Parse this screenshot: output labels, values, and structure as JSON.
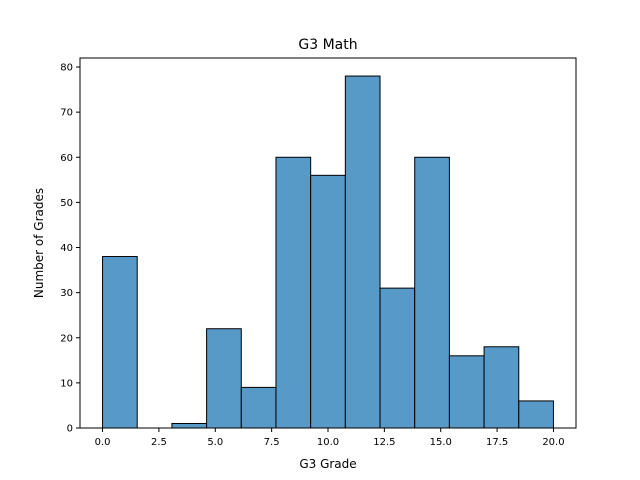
{
  "chart_data": {
    "type": "bar",
    "title": "G3 Math",
    "xlabel": "G3 Grade",
    "ylabel": "Number of Grades",
    "bins": [
      {
        "x0": 0.0,
        "x1": 1.538,
        "value": 38
      },
      {
        "x0": 1.538,
        "x1": 3.077,
        "value": 0
      },
      {
        "x0": 3.077,
        "x1": 4.615,
        "value": 1
      },
      {
        "x0": 4.615,
        "x1": 6.154,
        "value": 22
      },
      {
        "x0": 6.154,
        "x1": 7.692,
        "value": 9
      },
      {
        "x0": 7.692,
        "x1": 9.231,
        "value": 60
      },
      {
        "x0": 9.231,
        "x1": 10.769,
        "value": 56
      },
      {
        "x0": 10.769,
        "x1": 12.308,
        "value": 78
      },
      {
        "x0": 12.308,
        "x1": 13.846,
        "value": 31
      },
      {
        "x0": 13.846,
        "x1": 15.385,
        "value": 60
      },
      {
        "x0": 15.385,
        "x1": 16.923,
        "value": 16
      },
      {
        "x0": 16.923,
        "x1": 18.462,
        "value": 18
      },
      {
        "x0": 18.462,
        "x1": 20.0,
        "value": 6
      }
    ],
    "xlim": [
      -1.0,
      21.0
    ],
    "ylim": [
      0,
      82
    ],
    "xticks": [
      0.0,
      2.5,
      5.0,
      7.5,
      10.0,
      12.5,
      15.0,
      17.5,
      20.0
    ],
    "xtick_labels": [
      "0.0",
      "2.5",
      "5.0",
      "7.5",
      "10.0",
      "12.5",
      "15.0",
      "17.5",
      "20.0"
    ],
    "yticks": [
      0,
      10,
      20,
      30,
      40,
      50,
      60,
      70,
      80
    ],
    "ytick_labels": [
      "0",
      "10",
      "20",
      "30",
      "40",
      "50",
      "60",
      "70",
      "80"
    ],
    "grid": false,
    "bar_color": "#5799c7",
    "edge_color": "#000000"
  }
}
